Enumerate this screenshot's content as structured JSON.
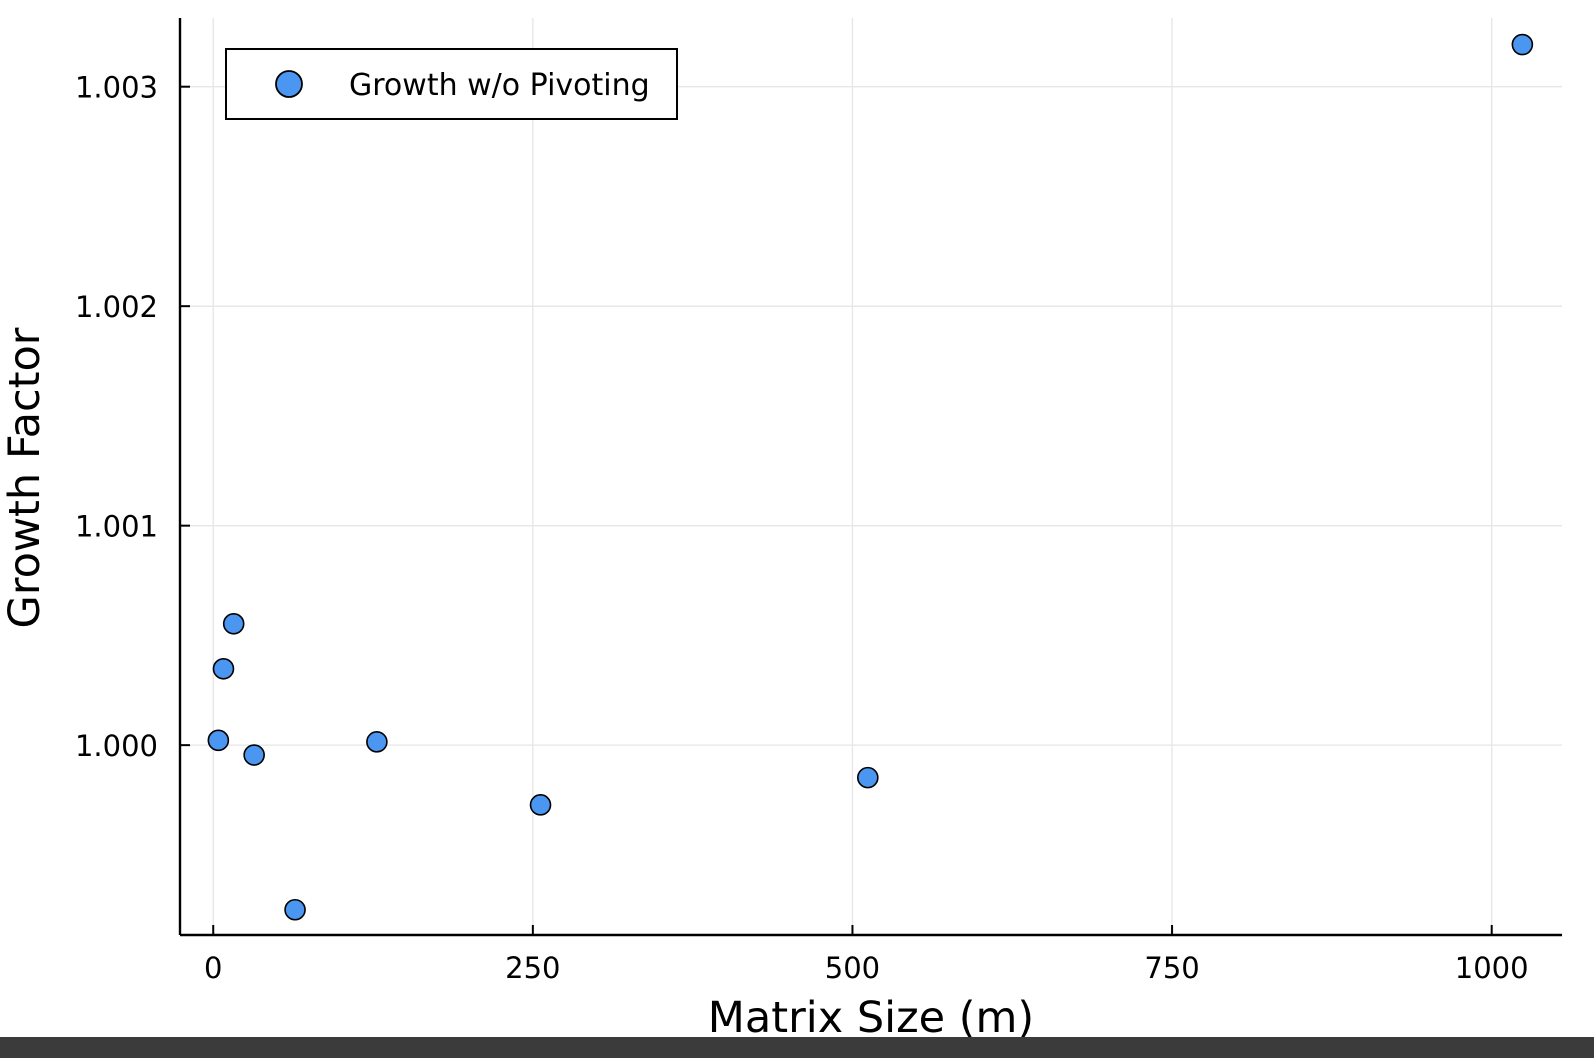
{
  "chart_data": {
    "type": "scatter",
    "title": "",
    "xlabel": "Matrix Size (m)",
    "ylabel": "Growth Factor",
    "xlim": [
      -26,
      1055
    ],
    "ylim": [
      0.999135,
      1.003313
    ],
    "xticks": [
      {
        "value": 0,
        "label": "0"
      },
      {
        "value": 250,
        "label": "250"
      },
      {
        "value": 500,
        "label": "500"
      },
      {
        "value": 750,
        "label": "750"
      },
      {
        "value": 1000,
        "label": "1000"
      }
    ],
    "yticks": [
      {
        "value": 1.0,
        "label": "1.000"
      },
      {
        "value": 1.001,
        "label": "1.001"
      },
      {
        "value": 1.002,
        "label": "1.002"
      },
      {
        "value": 1.003,
        "label": "1.003"
      }
    ],
    "grid": true,
    "legend_position": "top-left",
    "series": [
      {
        "name": "Growth w/o Pivoting",
        "color": "#4a96f0",
        "marker": "circle",
        "points": [
          {
            "x": 4,
            "y": 1.000022
          },
          {
            "x": 8,
            "y": 1.000348
          },
          {
            "x": 16,
            "y": 1.000553
          },
          {
            "x": 32,
            "y": 0.999955
          },
          {
            "x": 64,
            "y": 0.99925
          },
          {
            "x": 128,
            "y": 1.000015
          },
          {
            "x": 256,
            "y": 0.999728
          },
          {
            "x": 512,
            "y": 0.999852
          },
          {
            "x": 1024,
            "y": 1.003192
          }
        ]
      }
    ]
  }
}
